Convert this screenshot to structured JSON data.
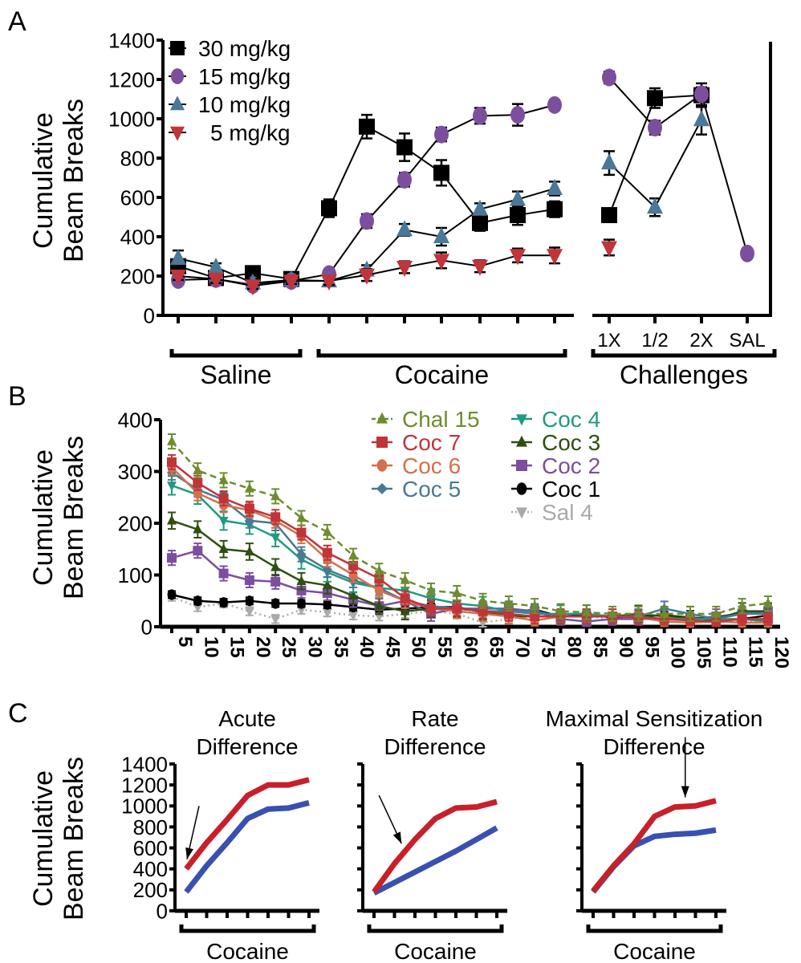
{
  "panel_labels": [
    "A",
    "B",
    "C"
  ],
  "chart_data": [
    {
      "type": "line",
      "panel": "A",
      "ylabel": [
        "Cumulative",
        "Beam Breaks"
      ],
      "ylim": [
        0,
        1400
      ],
      "yticks": [
        0,
        200,
        400,
        600,
        800,
        1000,
        1200,
        1400
      ],
      "groups": [
        "Saline",
        "Cocaine",
        "Challenges"
      ],
      "challenge_ticks": [
        "1X",
        "1/2",
        "2X",
        "SAL"
      ],
      "legend_position": "top-left",
      "series": [
        {
          "name": "30 mg/kg",
          "color": "#000000",
          "marker": "square",
          "saline": [
            250,
            190,
            215,
            185
          ],
          "saline_sem": [
            30,
            25,
            30,
            20
          ],
          "cocaine": [
            545,
            960,
            855,
            725,
            470,
            510,
            540
          ],
          "cocaine_sem": [
            45,
            60,
            70,
            65,
            40,
            50,
            40
          ],
          "challenges": [
            510,
            1105,
            1120,
            null
          ],
          "challenges_sem": [
            30,
            50,
            60,
            null
          ]
        },
        {
          "name": "15 mg/kg",
          "color": "#7b4f9e",
          "marker": "circle",
          "saline": [
            180,
            185,
            155,
            175
          ],
          "saline_sem": [
            20,
            20,
            20,
            15
          ],
          "cocaine": [
            210,
            480,
            690,
            920,
            1015,
            1020,
            1070
          ],
          "cocaine_sem": [
            20,
            35,
            35,
            35,
            40,
            55,
            25
          ],
          "challenges": [
            1210,
            955,
            1125,
            315
          ],
          "challenges_sem": [
            30,
            35,
            35,
            20
          ]
        },
        {
          "name": "10 mg/kg",
          "color": "#4a7896",
          "marker": "triangle-up",
          "saline": [
            290,
            245,
            165,
            180
          ],
          "saline_sem": [
            40,
            20,
            20,
            15
          ],
          "cocaine": [
            175,
            230,
            435,
            400,
            540,
            590,
            645
          ],
          "cocaine_sem": [
            20,
            25,
            30,
            45,
            30,
            40,
            35
          ],
          "challenges": [
            775,
            550,
            995,
            null
          ],
          "challenges_sem": [
            60,
            45,
            75,
            null
          ]
        },
        {
          "name": "5 mg/kg",
          "color": "#c0343a",
          "marker": "triangle-down",
          "saline": [
            200,
            185,
            150,
            175
          ],
          "saline_sem": [
            20,
            20,
            15,
            15
          ],
          "cocaine": [
            175,
            205,
            245,
            280,
            250,
            305,
            305
          ],
          "cocaine_sem": [
            20,
            30,
            30,
            40,
            30,
            35,
            40
          ],
          "challenges": [
            345,
            null,
            null,
            null
          ],
          "challenges_sem": [
            40,
            null,
            null,
            null
          ]
        }
      ]
    },
    {
      "type": "line",
      "panel": "B",
      "ylabel": [
        "Cumulative",
        "Beam Breaks"
      ],
      "ylim": [
        0,
        400
      ],
      "yticks": [
        0,
        100,
        200,
        300,
        400
      ],
      "x": [
        5,
        10,
        15,
        20,
        25,
        30,
        35,
        40,
        45,
        50,
        55,
        60,
        65,
        70,
        75,
        80,
        85,
        90,
        95,
        100,
        105,
        110,
        115,
        120
      ],
      "legend_position": "top-right",
      "series": [
        {
          "name": "Chal 15",
          "color": "#6e8c2e",
          "marker": "triangle-up",
          "dashed": true,
          "sem": 14,
          "values": [
            358,
            302,
            283,
            267,
            252,
            210,
            183,
            137,
            108,
            90,
            70,
            65,
            50,
            45,
            40,
            30,
            28,
            25,
            25,
            25,
            25,
            25,
            40,
            45
          ]
        },
        {
          "name": "Coc 7",
          "color": "#c0343a",
          "marker": "square",
          "sem": 14,
          "values": [
            318,
            278,
            248,
            228,
            212,
            182,
            143,
            118,
            93,
            55,
            35,
            35,
            30,
            25,
            20,
            20,
            20,
            20,
            18,
            15,
            12,
            10,
            15,
            15
          ]
        },
        {
          "name": "Coc 6",
          "color": "#d4704a",
          "marker": "circle",
          "sem": 14,
          "values": [
            308,
            258,
            235,
            225,
            205,
            175,
            130,
            100,
            70,
            50,
            35,
            30,
            25,
            20,
            12,
            20,
            20,
            20,
            18,
            10,
            8,
            10,
            8,
            8
          ]
        },
        {
          "name": "Coc 5",
          "color": "#4a7896",
          "marker": "diamond",
          "sem": 14,
          "values": [
            298,
            265,
            245,
            205,
            200,
            140,
            110,
            90,
            75,
            50,
            40,
            35,
            30,
            30,
            30,
            20,
            20,
            20,
            20,
            35,
            25,
            15,
            25,
            25
          ]
        },
        {
          "name": "Coc 4",
          "color": "#1f9a80",
          "marker": "triangle-down",
          "sem": 18,
          "values": [
            273,
            255,
            205,
            197,
            173,
            130,
            105,
            85,
            75,
            70,
            55,
            45,
            40,
            30,
            25,
            25,
            25,
            20,
            20,
            15,
            15,
            15,
            15,
            10
          ]
        },
        {
          "name": "Coc 3",
          "color": "#2f4f10",
          "marker": "triangle-up",
          "sem": 16,
          "values": [
            205,
            188,
            150,
            145,
            115,
            88,
            80,
            60,
            40,
            30,
            35,
            35,
            30,
            20,
            20,
            20,
            20,
            20,
            25,
            20,
            18,
            15,
            30,
            30
          ]
        },
        {
          "name": "Coc 2",
          "color": "#7b4f9e",
          "marker": "square",
          "sem": 14,
          "values": [
            133,
            147,
            103,
            90,
            87,
            70,
            65,
            52,
            40,
            50,
            25,
            35,
            35,
            35,
            30,
            15,
            10,
            15,
            15,
            15,
            15,
            20,
            25,
            30
          ]
        },
        {
          "name": "Coc 1",
          "color": "#000000",
          "marker": "circle",
          "sem": 7,
          "values": [
            62,
            50,
            47,
            50,
            45,
            45,
            43,
            38,
            33,
            35,
            38,
            38,
            28,
            28,
            33,
            20,
            23,
            18,
            20,
            22,
            18,
            12,
            15,
            22
          ]
        },
        {
          "name": "Sal 4",
          "color": "#aaaaaa",
          "marker": "triangle-down",
          "dotted": true,
          "sem": 8,
          "values": [
            58,
            38,
            45,
            30,
            15,
            33,
            28,
            22,
            20,
            25,
            30,
            25,
            8,
            15,
            20,
            20,
            20,
            15,
            18,
            15,
            15,
            12,
            12,
            10
          ]
        }
      ]
    },
    {
      "type": "line",
      "panel": "C",
      "ylabel": [
        "Cumulative",
        "Beam Breaks"
      ],
      "ylim": [
        0,
        1400
      ],
      "yticks": [
        0,
        200,
        400,
        600,
        800,
        1000,
        1200,
        1400
      ],
      "xlabel": "Cocaine",
      "subplots": [
        {
          "title": [
            "Acute",
            "Difference"
          ],
          "arrow_at_point": 0,
          "red": [
            400,
            650,
            870,
            1100,
            1200,
            1200,
            1250
          ],
          "blue": [
            180,
            430,
            650,
            880,
            970,
            980,
            1030
          ]
        },
        {
          "title": [
            "Rate",
            "Difference"
          ],
          "arrow_at_point": 2,
          "red": [
            180,
            450,
            680,
            880,
            980,
            990,
            1040
          ],
          "blue": [
            170,
            270,
            370,
            470,
            570,
            680,
            790
          ]
        },
        {
          "title": [
            "Maximal Sensitization",
            "Difference"
          ],
          "arrow_at_point": 4,
          "red": [
            190,
            430,
            640,
            900,
            990,
            1000,
            1050
          ],
          "blue": [
            180,
            420,
            620,
            710,
            730,
            740,
            770
          ]
        }
      ],
      "colors": {
        "red": "#c8202a",
        "blue": "#3a50b0"
      }
    }
  ]
}
